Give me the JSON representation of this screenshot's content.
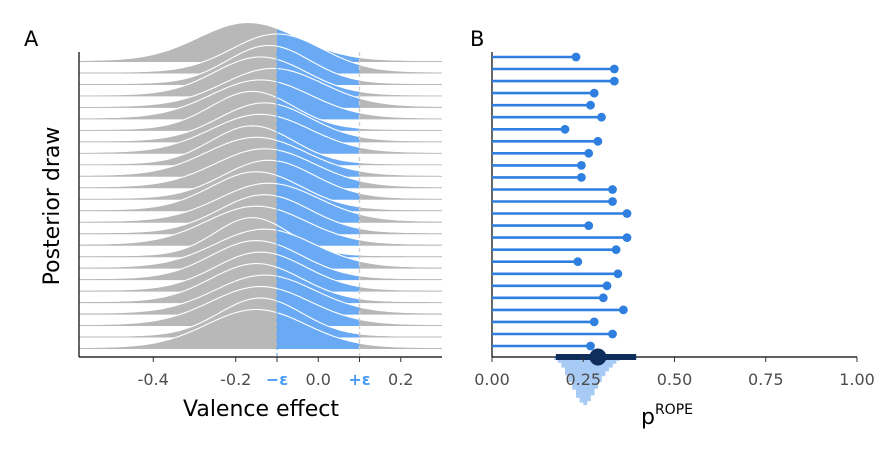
{
  "chart_data": [
    {
      "panel": "A",
      "type": "area",
      "xlabel": "Valence effect",
      "ylabel": "Posterior draw",
      "xlim": [
        -0.58,
        0.3
      ],
      "x_ticks": [
        {
          "value": -0.4,
          "label": "-0.4"
        },
        {
          "value": -0.2,
          "label": "-0.2"
        },
        {
          "value": -0.1,
          "label": "−ε",
          "highlight": true
        },
        {
          "value": 0.0,
          "label": "0.0"
        },
        {
          "value": 0.1,
          "label": "+ε",
          "highlight": true
        },
        {
          "value": 0.2,
          "label": "0.2"
        }
      ],
      "rope": [
        -0.1,
        0.1
      ],
      "ridges": [
        {
          "mean": -0.17,
          "sd": 0.12
        },
        {
          "mean": -0.1,
          "sd": 0.11
        },
        {
          "mean": -0.12,
          "sd": 0.1
        },
        {
          "mean": -0.14,
          "sd": 0.11
        },
        {
          "mean": -0.11,
          "sd": 0.12
        },
        {
          "mean": -0.14,
          "sd": 0.12
        },
        {
          "mean": -0.16,
          "sd": 0.1
        },
        {
          "mean": -0.13,
          "sd": 0.11
        },
        {
          "mean": -0.14,
          "sd": 0.12
        },
        {
          "mean": -0.16,
          "sd": 0.1
        },
        {
          "mean": -0.15,
          "sd": 0.12
        },
        {
          "mean": -0.13,
          "sd": 0.12
        },
        {
          "mean": -0.12,
          "sd": 0.11
        },
        {
          "mean": -0.15,
          "sd": 0.11
        },
        {
          "mean": -0.12,
          "sd": 0.12
        },
        {
          "mean": -0.13,
          "sd": 0.11
        },
        {
          "mean": -0.15,
          "sd": 0.12
        },
        {
          "mean": -0.16,
          "sd": 0.09
        },
        {
          "mean": -0.13,
          "sd": 0.12
        },
        {
          "mean": -0.15,
          "sd": 0.11
        },
        {
          "mean": -0.14,
          "sd": 0.11
        },
        {
          "mean": -0.15,
          "sd": 0.11
        },
        {
          "mean": -0.13,
          "sd": 0.12
        },
        {
          "mean": -0.14,
          "sd": 0.12
        },
        {
          "mean": -0.14,
          "sd": 0.1
        },
        {
          "mean": -0.15,
          "sd": 0.12
        }
      ],
      "colors": {
        "outside": "#b8b8b8",
        "inside": "#6aaaf4",
        "ridge_line": "#ffffff",
        "rope_line": "#cfcfcf"
      }
    },
    {
      "panel": "B",
      "type": "scatter",
      "xlabel": "p",
      "xlabel_superscript": "ROPE",
      "xlim": [
        0,
        1
      ],
      "x_ticks": [
        "0.00",
        "0.25",
        "0.50",
        "0.75",
        "1.00"
      ],
      "x_tick_values": [
        0,
        0.25,
        0.5,
        0.75,
        1.0
      ],
      "lollipop_values": [
        0.23,
        0.335,
        0.335,
        0.28,
        0.27,
        0.3,
        0.2,
        0.29,
        0.265,
        0.245,
        0.245,
        0.33,
        0.33,
        0.37,
        0.265,
        0.37,
        0.34,
        0.235,
        0.345,
        0.315,
        0.305,
        0.36,
        0.28,
        0.33,
        0.27
      ],
      "summary": {
        "point": 0.29,
        "interval": [
          0.175,
          0.395
        ]
      },
      "histogram": {
        "bin_start": 0.17,
        "bin_width": 0.01,
        "densities": [
          0.06,
          0.12,
          0.22,
          0.38,
          0.52,
          0.68,
          0.85,
          0.95,
          1.0,
          0.92,
          0.8,
          0.66,
          0.52,
          0.4,
          0.3,
          0.22,
          0.14,
          0.08,
          0.05,
          0.03
        ]
      },
      "colors": {
        "lollipop": "#2f7fe0",
        "summary": "#0f2e5c",
        "hist": "#a7cbf5"
      }
    }
  ]
}
